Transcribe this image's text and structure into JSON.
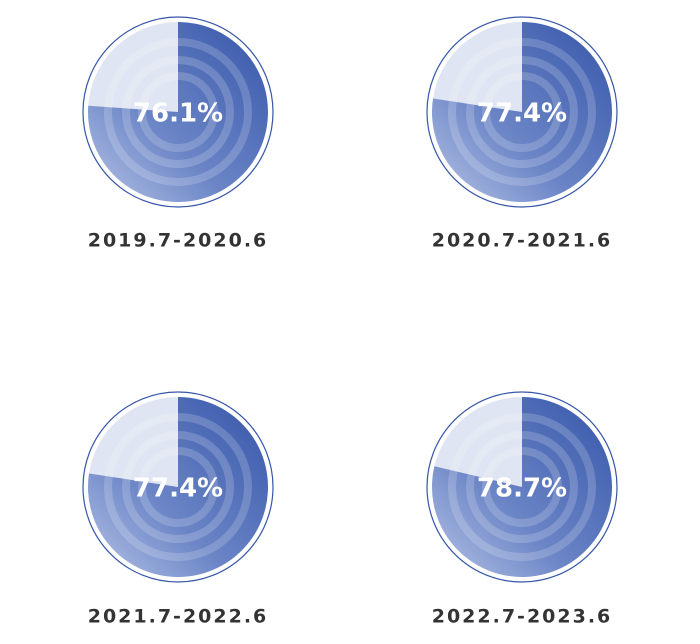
{
  "chart_data": [
    {
      "type": "pie",
      "title": "2019.7-2020.6",
      "values": [
        76.1
      ],
      "value_labels": [
        "76.1%"
      ],
      "color": "#3656a9"
    },
    {
      "type": "pie",
      "title": "2020.7-2021.6",
      "values": [
        77.4
      ],
      "value_labels": [
        "77.4%"
      ],
      "color": "#3656a9"
    },
    {
      "type": "pie",
      "title": "2021.7-2022.6",
      "values": [
        77.4
      ],
      "value_labels": [
        "77.4%"
      ],
      "color": "#3656a9"
    },
    {
      "type": "pie",
      "title": "2022.7-2023.6",
      "values": [
        78.7
      ],
      "value_labels": [
        "78.7%"
      ],
      "color": "#3656a9"
    }
  ]
}
